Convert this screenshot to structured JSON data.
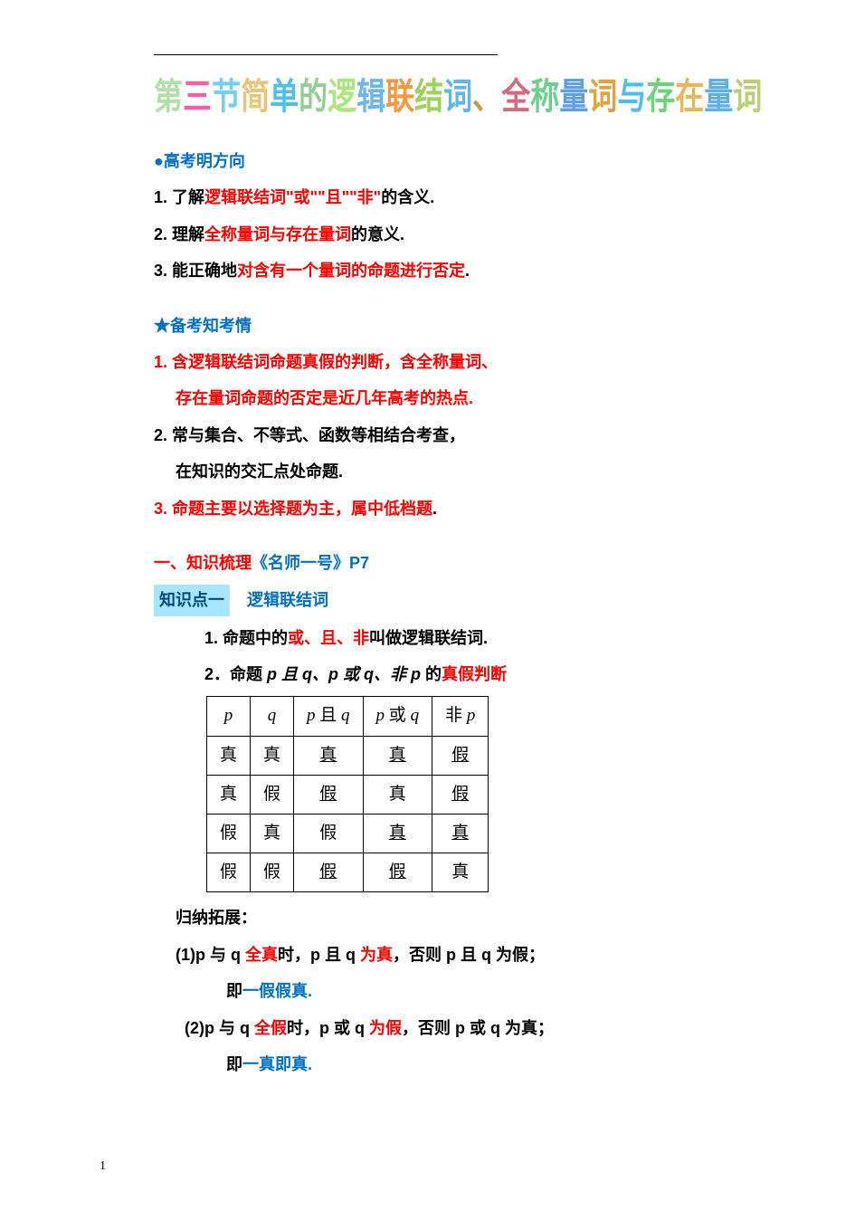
{
  "hero": {
    "chars": [
      "第",
      "三",
      "节",
      "",
      "简",
      "单",
      "的",
      "逻",
      "辑",
      "联",
      "结",
      "词",
      "、",
      "全",
      "称",
      "量",
      "词",
      "与",
      "存",
      "在",
      "量",
      "词"
    ],
    "colors": [
      "#b0e0a8",
      "#fb5fa5",
      "#6fcff6",
      "#ffffff",
      "#e8c679",
      "#4fc1e8",
      "#90cf90",
      "#a8e87a",
      "#6cb5f2",
      "#f79740",
      "#9dd05d",
      "#60b6e8",
      "#c49a4b",
      "#d46a7b",
      "#6bd08d",
      "#5fa0e5",
      "#e2a13e",
      "#4fc1e8",
      "#6fd07d",
      "#e8b65a",
      "#5fb0e2",
      "#b8d070"
    ]
  },
  "section1": {
    "title": "●高考明方向",
    "items": [
      {
        "n": "1. 了解",
        "r": "逻辑联结词\"或\"\"且\"\"非\"",
        "t": "的含义."
      },
      {
        "n": "2. 理解",
        "r": "全称量词与存在量词",
        "t": "的意义."
      },
      {
        "n": "3. 能正确地",
        "r": "对含有一个量词的命题进行否定",
        "t": "."
      }
    ]
  },
  "section2": {
    "title": "★备考知考情",
    "items": [
      {
        "parts": [
          {
            "t": "1. 含逻辑联结词命题真假的判断，含全称量词、",
            "c": "red"
          }
        ]
      },
      {
        "parts": [
          {
            "t": "存在量词命题的否定是近几年高考的热点.",
            "c": "red"
          }
        ],
        "indent": "indent1"
      },
      {
        "parts": [
          {
            "t": "2. 常与集合、不等式、函数等相结合考查，",
            "c": "black"
          }
        ]
      },
      {
        "parts": [
          {
            "t": "在知识的交汇点处命题.",
            "c": "black"
          }
        ],
        "indent": "indent1"
      },
      {
        "parts": [
          {
            "t": "3. 命题主要以选择题为主，属中低档题",
            "c": "red"
          },
          {
            "t": ".",
            "c": "black"
          }
        ]
      }
    ]
  },
  "section3": {
    "heading_red": "一、知识梳理",
    "heading_blue": "《名师一号》P7",
    "kp_label": "知识点一",
    "kp_title": "逻辑联结词",
    "item1_pre": "1. 命题中的",
    "item1_red": "或、且、非",
    "item1_post": "叫做逻辑联结词.",
    "item2_pre": "2．命题 ",
    "item2_pqp": "p 且 q、p 或 q、非 p ",
    "item2_mid": "的",
    "item2_red": "真假判断"
  },
  "truth_table": {
    "headers": [
      "p",
      "q",
      "p 且 q",
      "p 或 q",
      "非 p"
    ],
    "rows": [
      [
        {
          "v": "真"
        },
        {
          "v": "真"
        },
        {
          "v": "真",
          "u": true
        },
        {
          "v": "真",
          "u": true
        },
        {
          "v": "假",
          "u": true
        }
      ],
      [
        {
          "v": "真"
        },
        {
          "v": "假"
        },
        {
          "v": "假",
          "u": true
        },
        {
          "v": "真"
        },
        {
          "v": "假",
          "u": true
        }
      ],
      [
        {
          "v": "假"
        },
        {
          "v": "真"
        },
        {
          "v": "假"
        },
        {
          "v": "真",
          "u": true
        },
        {
          "v": "真",
          "u": true
        }
      ],
      [
        {
          "v": "假"
        },
        {
          "v": "假"
        },
        {
          "v": "假",
          "u": true
        },
        {
          "v": "假",
          "u": true
        },
        {
          "v": "真"
        }
      ]
    ]
  },
  "summary": {
    "title": "归纳拓展：",
    "s1_a": "(1)p 与 q ",
    "s1_r1": "全真",
    "s1_b": "时，p 且 q ",
    "s1_r2": "为真",
    "s1_c": "，否则 p 且 q 为假；",
    "s1_tag_a": "即",
    "s1_tag_b": "一假假真.",
    "s2_a": "(2)p 与 q ",
    "s2_r1": "全假",
    "s2_b": "时，p 或 q ",
    "s2_r2": "为假",
    "s2_c": "，否则 p 或 q 为真；",
    "s2_tag_a": "即",
    "s2_tag_b": "一真即真."
  },
  "footer": {
    "page": "1"
  }
}
